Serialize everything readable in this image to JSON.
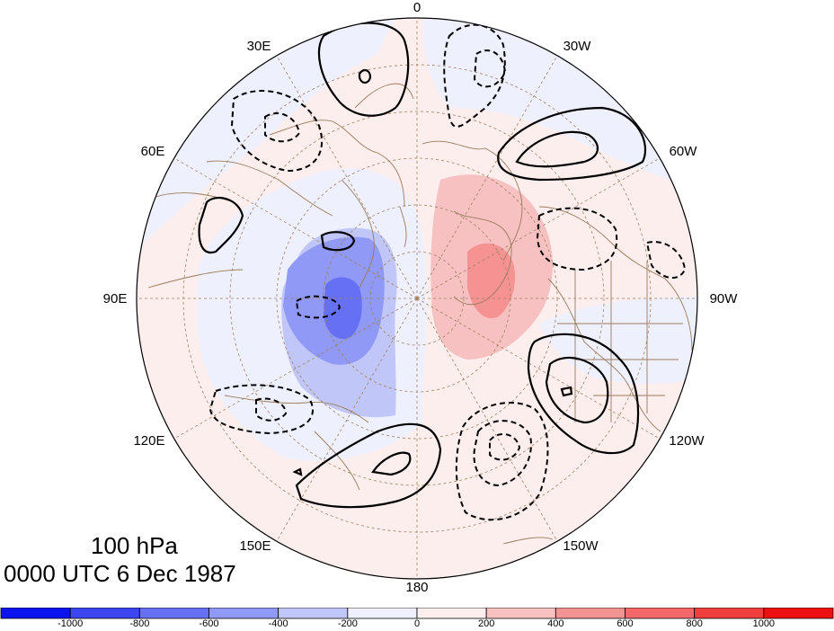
{
  "plot": {
    "level": "100 hPa",
    "valid_time": "0000 UTC 6 Dec 1987",
    "projection": "north-polar-stereographic",
    "center_lon_top": 0
  },
  "longitude_labels": [
    "0",
    "30W",
    "60W",
    "90W",
    "120W",
    "150W",
    "180",
    "150E",
    "120E",
    "90E",
    "60E",
    "30E"
  ],
  "colorbar": {
    "ticks": [
      "-1000",
      "-800",
      "-600",
      "-400",
      "-200",
      "0",
      "200",
      "400",
      "600",
      "800",
      "1000"
    ],
    "colors": [
      "#0a14ee",
      "#3c46f0",
      "#6670f2",
      "#9099f5",
      "#c0c6f8",
      "#eef0fd",
      "#fdeeee",
      "#f8c1c1",
      "#f59393",
      "#f26868",
      "#ef3e3e",
      "#ee1010"
    ]
  },
  "colors": {
    "negative_anomaly": "#6670f2",
    "positive_anomaly": "#f26868",
    "graticule": "#a08060",
    "coastline": "#9a7b5c",
    "contour": "#000000"
  }
}
